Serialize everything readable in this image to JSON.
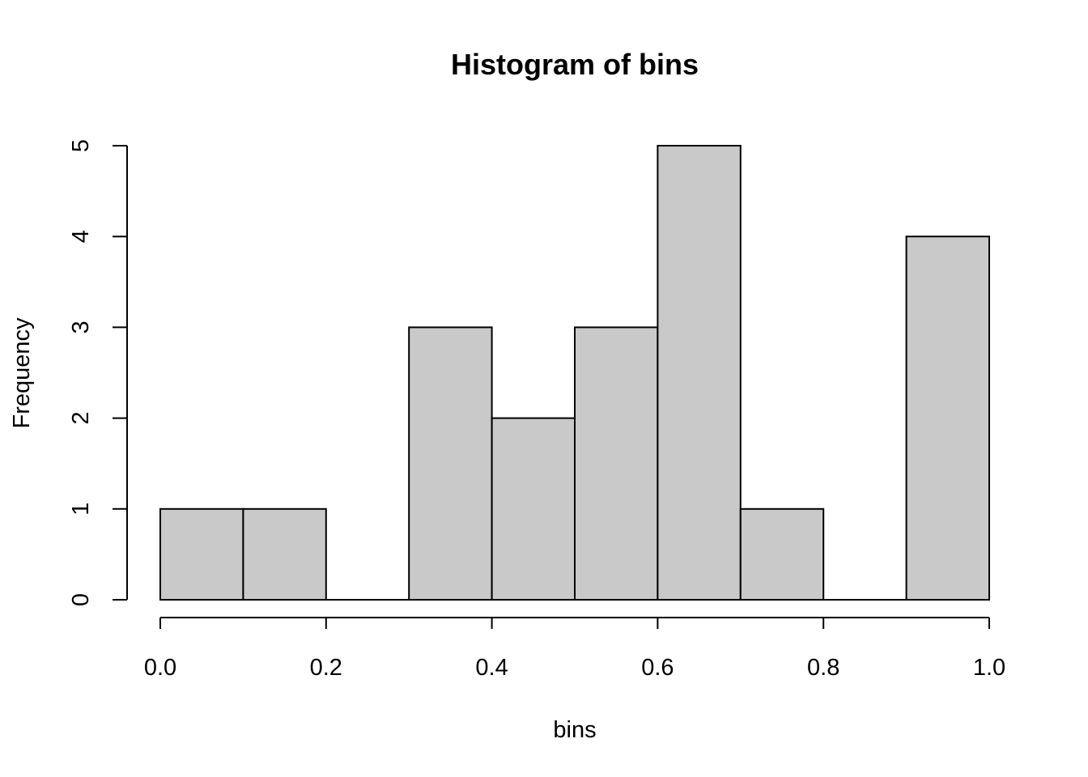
{
  "chart_data": {
    "type": "bar",
    "title": "Histogram of bins",
    "xlabel": "bins",
    "ylabel": "Frequency",
    "bins": [
      {
        "start": 0.0,
        "end": 0.1,
        "count": 1
      },
      {
        "start": 0.1,
        "end": 0.2,
        "count": 1
      },
      {
        "start": 0.2,
        "end": 0.3,
        "count": 0
      },
      {
        "start": 0.3,
        "end": 0.4,
        "count": 3
      },
      {
        "start": 0.4,
        "end": 0.5,
        "count": 2
      },
      {
        "start": 0.5,
        "end": 0.6,
        "count": 3
      },
      {
        "start": 0.6,
        "end": 0.7,
        "count": 5
      },
      {
        "start": 0.7,
        "end": 0.8,
        "count": 1
      },
      {
        "start": 0.8,
        "end": 0.9,
        "count": 0
      },
      {
        "start": 0.9,
        "end": 1.0,
        "count": 4
      }
    ],
    "xlim": [
      0.0,
      1.0
    ],
    "ylim": [
      0,
      5
    ],
    "x_ticks": [
      0.0,
      0.2,
      0.4,
      0.6,
      0.8,
      1.0
    ],
    "x_tick_labels": [
      "0.0",
      "0.2",
      "0.4",
      "0.6",
      "0.8",
      "1.0"
    ],
    "y_ticks": [
      0,
      1,
      2,
      3,
      4,
      5
    ],
    "y_tick_labels": [
      "0",
      "1",
      "2",
      "3",
      "4",
      "5"
    ],
    "bar_fill": "#c9c9c9",
    "grid": false
  }
}
